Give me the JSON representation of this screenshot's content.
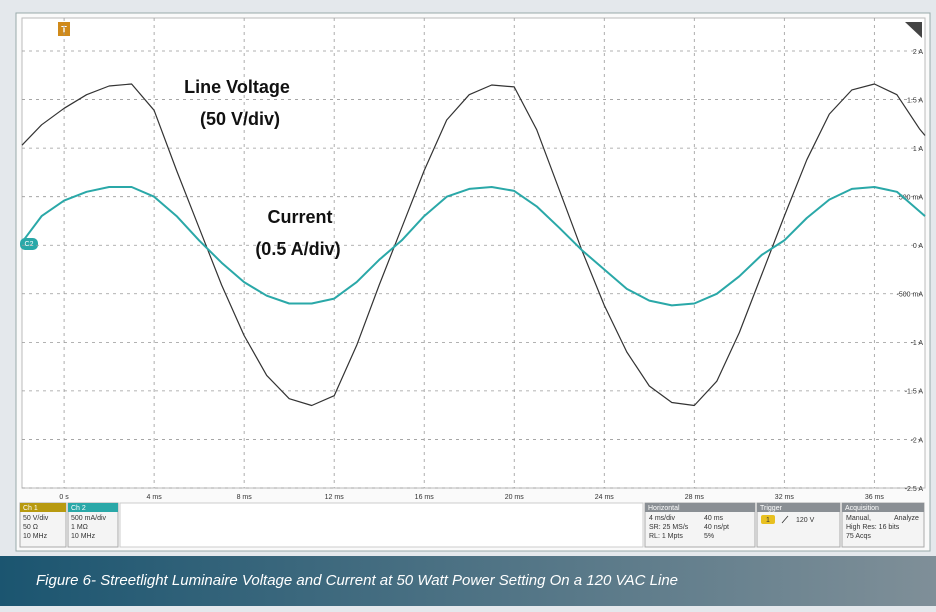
{
  "chart_data": {
    "type": "line",
    "x": [
      -1.87,
      -1,
      0,
      1,
      2,
      3,
      4,
      5,
      6,
      7,
      8,
      9,
      10,
      11,
      12,
      13,
      14,
      15,
      16,
      17,
      18,
      19,
      20,
      21,
      22,
      23,
      24,
      25,
      26,
      27,
      28,
      29,
      30,
      31,
      32,
      33,
      34,
      35,
      36,
      37,
      38,
      38.25
    ],
    "series": [
      {
        "color": "#333333",
        "values": [
          1.03,
          1.24,
          1.41,
          1.55,
          1.64,
          1.66,
          1.39,
          0.77,
          0.18,
          -0.41,
          -0.93,
          -1.34,
          -1.58,
          -1.65,
          -1.55,
          -1.03,
          -0.41,
          0.18,
          0.77,
          1.29,
          1.55,
          1.65,
          1.63,
          1.19,
          0.57,
          -0.05,
          -0.62,
          -1.1,
          -1.45,
          -1.62,
          -1.65,
          -1.4,
          -0.9,
          -0.3,
          0.3,
          0.88,
          1.35,
          1.6,
          1.66,
          1.55,
          1.2,
          1.13
        ]
      },
      {
        "color": "#2aa8a8",
        "values": [
          0.03,
          0.3,
          0.46,
          0.55,
          0.6,
          0.6,
          0.5,
          0.3,
          0.05,
          -0.18,
          -0.38,
          -0.52,
          -0.6,
          -0.6,
          -0.55,
          -0.38,
          -0.15,
          0.05,
          0.3,
          0.5,
          0.58,
          0.6,
          0.56,
          0.4,
          0.18,
          -0.05,
          -0.25,
          -0.45,
          -0.57,
          -0.62,
          -0.6,
          -0.5,
          -0.32,
          -0.1,
          0.05,
          0.28,
          0.47,
          0.58,
          0.6,
          0.55,
          0.35,
          0.3
        ]
      }
    ],
    "xlim": [
      -1.87,
      38.25
    ],
    "xticks": [
      {
        "value": 0,
        "label": "0 s"
      },
      {
        "value": 4,
        "label": "4 ms"
      },
      {
        "value": 8,
        "label": "8 ms"
      },
      {
        "value": 12,
        "label": "12 ms"
      },
      {
        "value": 16,
        "label": "16 ms"
      },
      {
        "value": 20,
        "label": "20 ms"
      },
      {
        "value": 24,
        "label": "24 ms"
      },
      {
        "value": 28,
        "label": "28 ms"
      },
      {
        "value": 32,
        "label": "32 ms"
      },
      {
        "value": 36,
        "label": "36 ms"
      }
    ],
    "ylim": [
      -2.5,
      2.34
    ],
    "yticks": [
      {
        "value": 2,
        "label": "2 A"
      },
      {
        "value": 1.5,
        "label": "1.5 A"
      },
      {
        "value": 1,
        "label": "1 A"
      },
      {
        "value": 0.5,
        "label": "500 mA"
      },
      {
        "value": 0,
        "label": "0 A"
      },
      {
        "value": -0.5,
        "label": "-500 mA"
      },
      {
        "value": -1,
        "label": "-1 A"
      },
      {
        "value": -1.5,
        "label": "-1.5 A"
      },
      {
        "value": -2,
        "label": "-2 A"
      },
      {
        "value": -2.5,
        "label": "-2.5 A"
      }
    ],
    "grid": true,
    "annotations": [
      "Line Voltage",
      "(50 V/div)",
      "Current",
      "(0.5 A/div)"
    ],
    "trigger_marker": "T",
    "channel_marker": "C2"
  },
  "status_panel": {
    "ch1": {
      "label": "Ch 1",
      "lines": [
        "50 V/div",
        "50 Ω",
        "10 MHz"
      ]
    },
    "ch2": {
      "label": "Ch 2",
      "lines": [
        "500 mA/div",
        "1 MΩ",
        "10 MHz"
      ]
    },
    "horizontal": {
      "label": "Horizontal",
      "lines": [
        [
          "4 ms/div",
          "40 ms"
        ],
        [
          "SR: 25 MS/s",
          "40 ns/pt"
        ],
        [
          "RL: 1 Mpts",
          "5%"
        ]
      ]
    },
    "trigger": {
      "label": "Trigger",
      "source": "1",
      "level": "120 V"
    },
    "acquisition": {
      "label": "Acquisition",
      "lines": [
        [
          "Manual,",
          "Analyze"
        ],
        [
          "High Res: 16 bits"
        ],
        [
          "75 Acqs"
        ]
      ]
    }
  },
  "caption": "Figure 6- Streetlight Luminaire Voltage and Current at 50 Watt Power Setting On a 120 VAC Line"
}
